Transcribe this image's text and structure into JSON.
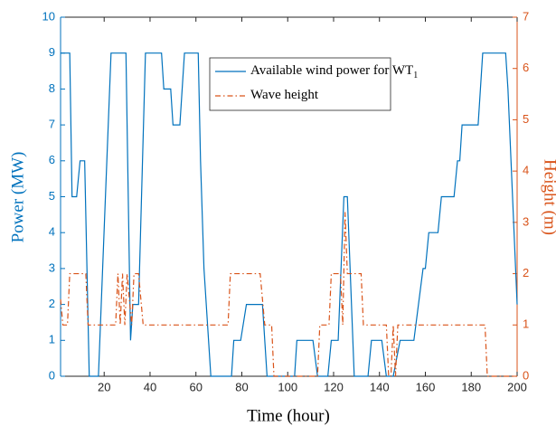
{
  "chart_data": {
    "type": "line",
    "xlabel": "Time (hour)",
    "ylabel": "Power (MW)",
    "y2label": "Height (m)",
    "xlim": [
      1,
      200
    ],
    "xticks": [
      20,
      40,
      60,
      80,
      100,
      120,
      140,
      160,
      180,
      200
    ],
    "ylim": [
      0,
      10
    ],
    "yticks": [
      0,
      1,
      2,
      3,
      4,
      5,
      6,
      7,
      8,
      9,
      10
    ],
    "y2lim": [
      0,
      7
    ],
    "y2ticks": [
      0,
      1,
      2,
      3,
      4,
      5,
      6,
      7
    ],
    "legend": "top-center",
    "series": [
      {
        "name": "Available wind power for WT",
        "name_sub": "1",
        "color": "#0072BD",
        "style": "solid",
        "x": [
          1,
          5,
          6,
          8,
          9.5,
          11.5,
          13.5,
          17.5,
          23,
          29.5,
          31.5,
          32.5,
          35,
          38,
          45,
          46,
          49,
          50,
          53,
          55,
          61,
          62,
          63.5,
          66.5,
          75.5,
          76.5,
          79.5,
          82,
          89,
          91,
          103,
          104,
          111,
          113,
          117.5,
          119,
          122,
          124.5,
          126,
          129,
          135,
          136.5,
          141,
          143,
          146,
          149,
          155,
          157,
          159,
          160,
          161.5,
          165.5,
          167,
          172.5,
          174,
          175,
          176,
          183,
          185,
          195,
          196,
          200
        ],
        "values": [
          9,
          9,
          5,
          5,
          6,
          6,
          0,
          0,
          9,
          9,
          1,
          2,
          2,
          9,
          9,
          8,
          8,
          7,
          7,
          9,
          9,
          6,
          3,
          0,
          0,
          1,
          1,
          2,
          2,
          0,
          0,
          1,
          1,
          0,
          0,
          1,
          1,
          5,
          5,
          0,
          0,
          1,
          1,
          0,
          0,
          1,
          1,
          2,
          3,
          3,
          4,
          4,
          5,
          5,
          6,
          6,
          7,
          7,
          9,
          9,
          8,
          2
        ]
      },
      {
        "name": "Wave height",
        "color": "#D95319",
        "style": "dashdot",
        "axis": "y2",
        "x": [
          1,
          2,
          4,
          5,
          12,
          13,
          25,
          26,
          27,
          28,
          29,
          30,
          32,
          33,
          35,
          36,
          37,
          74,
          75,
          88,
          90,
          93,
          94,
          113,
          114,
          118,
          119,
          123,
          124,
          125,
          126,
          132,
          133,
          143,
          144,
          145,
          146,
          147,
          148,
          186,
          187,
          200
        ],
        "values": [
          1.5,
          1,
          1,
          2,
          2,
          1,
          1,
          2,
          1,
          2,
          1,
          2,
          1,
          2,
          2,
          1.5,
          1,
          1,
          2,
          2,
          1,
          1,
          0,
          0,
          1,
          1,
          2,
          2,
          1,
          3.2,
          2,
          2,
          1,
          1,
          0,
          0,
          1,
          0,
          1,
          1,
          0,
          0
        ]
      }
    ]
  }
}
